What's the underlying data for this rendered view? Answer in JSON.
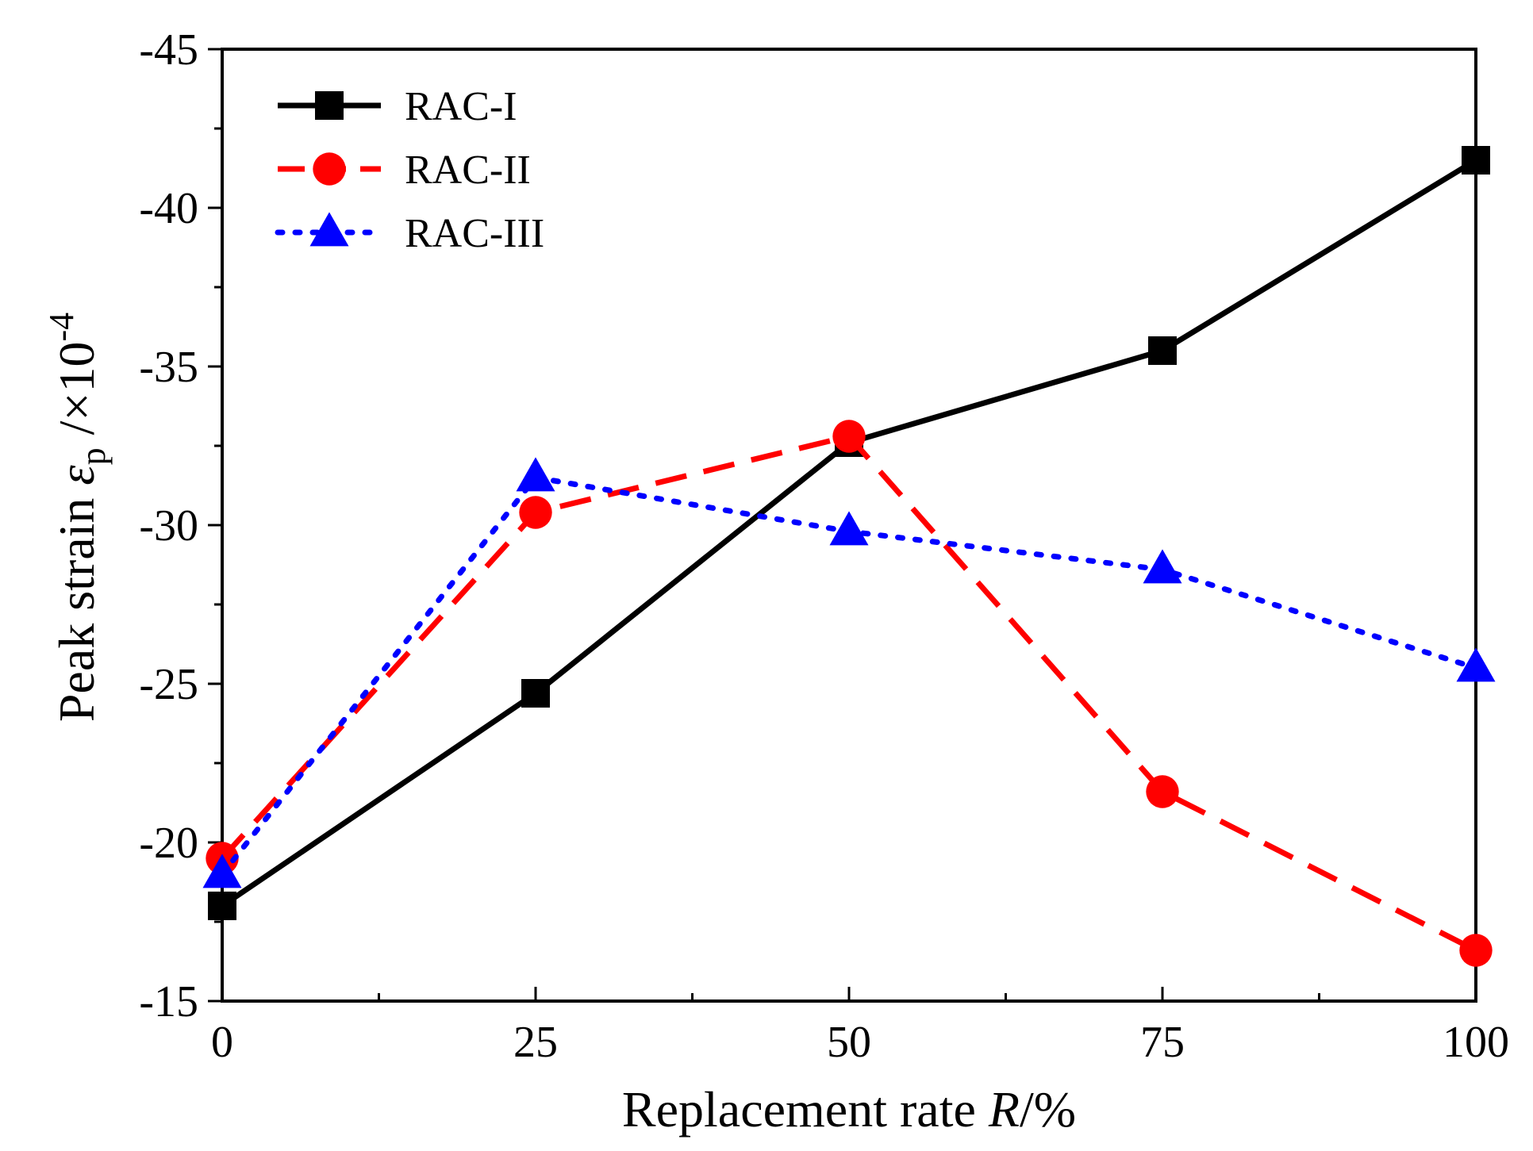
{
  "chart_data": {
    "type": "line",
    "x": [
      0,
      25,
      50,
      75,
      100
    ],
    "x_ticks": [
      "0",
      "25",
      "50",
      "75",
      "100"
    ],
    "xlim": [
      0,
      100
    ],
    "y_ticks": [
      "-45",
      "-40",
      "-35",
      "-30",
      "-25",
      "-20",
      "-15"
    ],
    "ylim": [
      -15,
      -45
    ],
    "y_axis_inverted": true,
    "xlabel": {
      "prefix": "Replacement rate ",
      "variable": "R",
      "suffix": "/%"
    },
    "ylabel": {
      "prefix": "Peak strain ",
      "variable": "ε",
      "subscript": "p",
      "unit": " /×10",
      "exponent": "-4"
    },
    "legend_position": "top-left",
    "grid": false,
    "series": [
      {
        "name": "RAC-I",
        "values": [
          -18.0,
          -24.7,
          -32.6,
          -35.5,
          -41.5
        ],
        "color": "#000000",
        "marker": "square",
        "line": "solid"
      },
      {
        "name": "RAC-II",
        "values": [
          -19.5,
          -30.4,
          -32.8,
          -21.6,
          -16.6
        ],
        "color": "#ff0000",
        "marker": "circle",
        "line": "dashed"
      },
      {
        "name": "RAC-III",
        "values": [
          -19.0,
          -31.5,
          -29.8,
          -28.6,
          -25.5
        ],
        "color": "#0000ff",
        "marker": "triangle",
        "line": "dotted"
      }
    ]
  }
}
